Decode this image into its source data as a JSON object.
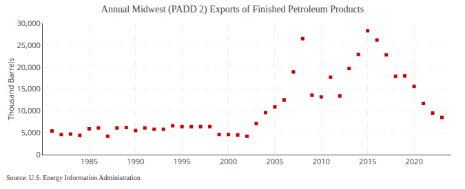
{
  "chart_data": {
    "type": "scatter",
    "title": "Annual Midwest (PADD 2) Exports of Finished Petroleum Products",
    "ylabel": "Thousand Barrels",
    "annotations": [
      "Source: U.S. Energy Information Administration"
    ],
    "x": [
      1981,
      1982,
      1983,
      1984,
      1985,
      1986,
      1987,
      1988,
      1989,
      1990,
      1991,
      1992,
      1993,
      1994,
      1995,
      1996,
      1997,
      1998,
      1999,
      2000,
      2001,
      2002,
      2003,
      2004,
      2005,
      2006,
      2007,
      2008,
      2009,
      2010,
      2011,
      2012,
      2013,
      2014,
      2015,
      2016,
      2017,
      2018,
      2019,
      2020,
      2021,
      2022,
      2023
    ],
    "values": [
      5400,
      4600,
      4700,
      4400,
      5900,
      6100,
      4200,
      6100,
      6200,
      5500,
      6100,
      5800,
      5800,
      6600,
      6400,
      6400,
      6400,
      6400,
      4600,
      4600,
      4500,
      4200,
      7100,
      9600,
      10900,
      12500,
      18900,
      26500,
      13600,
      13200,
      17700,
      13400,
      19700,
      22900,
      28300,
      26200,
      22800,
      17900,
      18000,
      15600,
      11700,
      9500,
      8500
    ],
    "color": "#cc0000",
    "marker": "square",
    "xlim": [
      1980,
      2024
    ],
    "xticks": [
      1985,
      1990,
      1995,
      2000,
      2005,
      2010,
      2015,
      2020
    ],
    "ylim": [
      0,
      30000
    ],
    "yticks": [
      0,
      {
        "value": 5000,
        "label": "5,000"
      },
      {
        "value": 10000,
        "label": "10,000"
      },
      {
        "value": 15000,
        "label": "15,000"
      },
      {
        "value": 20000,
        "label": "20,000"
      },
      {
        "value": 25000,
        "label": "25,000"
      },
      {
        "value": 30000,
        "label": "30,000"
      }
    ],
    "grid": true
  }
}
